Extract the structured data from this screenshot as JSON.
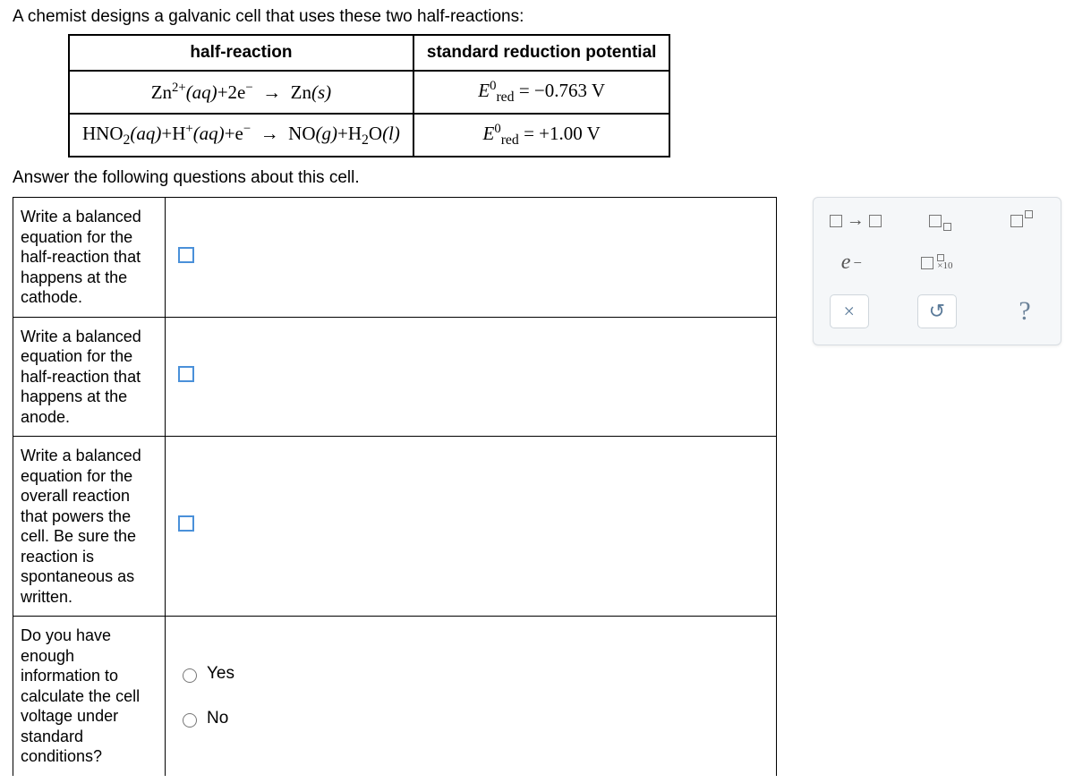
{
  "intro": "A chemist designs a galvanic cell that uses these two half-reactions:",
  "reactions_table": {
    "headers": [
      "half-reaction",
      "standard reduction potential"
    ],
    "rows": [
      {
        "reaction_html": "Zn<span class='sup'>2+</span><span class='italic'>(aq)</span>+2e<span class='sup'>−</span>&nbsp;&nbsp;→&nbsp;&nbsp;Zn<span class='italic'>(s)</span>",
        "potential_html": "<span class='italic'>E</span><span class='sup'>0</span><span class='subsc'>red</span> = −0.763 V"
      },
      {
        "reaction_html": "HNO<span class='subsc'>2</span><span class='italic'>(aq)</span>+H<span class='sup'>+</span><span class='italic'>(aq)</span>+e<span class='sup'>−</span>&nbsp;&nbsp;→&nbsp;&nbsp;NO<span class='italic'>(g)</span>+H<span class='subsc'>2</span>O<span class='italic'>(l)</span>",
        "potential_html": "<span class='italic'>E</span><span class='sup'>0</span><span class='subsc'>red</span> = +1.00 V"
      }
    ]
  },
  "instruction": "Answer the following questions about this cell.",
  "questions": [
    {
      "label": "Write a balanced equation for the half-reaction that happens at the cathode.",
      "type": "box"
    },
    {
      "label": "Write a balanced equation for the half-reaction that happens at the anode.",
      "type": "box"
    },
    {
      "label": "Write a balanced equation for the overall reaction that powers the cell. Be sure the reaction is spontaneous as written.",
      "type": "box"
    },
    {
      "label": "Do you have enough information to calculate the cell voltage under standard conditions?",
      "type": "radio",
      "options": [
        "Yes",
        "No"
      ]
    }
  ],
  "palette": {
    "row1": [
      "yields",
      "subscript",
      "superscript"
    ],
    "row2_e": "e",
    "row2_x10": "×10",
    "ctrl": {
      "clear": "×",
      "reset": "↺",
      "help": "?"
    }
  },
  "colors": {
    "placeholder_border": "#4a90d9",
    "palette_bg": "#f5f7f9",
    "palette_border": "#d8dde2",
    "ctrl_border": "#cfd6dc",
    "ctrl_fg": "#5a7a99"
  }
}
